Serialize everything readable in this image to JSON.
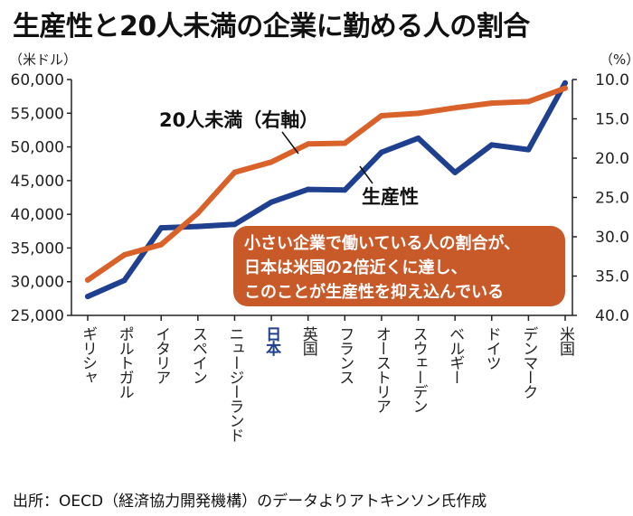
{
  "title": "生産性と20人未満の企業に勤める人の割合",
  "source": "出所：OECD（経済協力開発機構）のデータよりアトキンソン氏作成",
  "chart_data": {
    "type": "line",
    "categories": [
      "ギリシャ",
      "ポルトガル",
      "イタリア",
      "スペイン",
      "ニュージーランド",
      "日本",
      "英国",
      "フランス",
      "オーストリア",
      "スウェーデン",
      "ベルギー",
      "ドイツ",
      "デンマーク",
      "米国"
    ],
    "highlight_category": "日本",
    "left_axis": {
      "unit_label": "（米ドル）",
      "min": 25000,
      "max": 60000,
      "ticks": [
        25000,
        30000,
        35000,
        40000,
        45000,
        50000,
        55000,
        60000
      ],
      "tick_labels": [
        "25,000",
        "30,000",
        "35,000",
        "40,000",
        "45,000",
        "50,000",
        "55,000",
        "60,000"
      ]
    },
    "right_axis": {
      "unit_label": "（%）",
      "inverted": true,
      "min": 10.0,
      "max": 40.0,
      "ticks": [
        10.0,
        15.0,
        20.0,
        25.0,
        30.0,
        35.0,
        40.0
      ],
      "tick_labels": [
        "10.0",
        "15.0",
        "20.0",
        "25.0",
        "30.0",
        "35.0",
        "40.0"
      ]
    },
    "series": [
      {
        "name": "生産性",
        "axis": "left",
        "color": "#1f3f8f",
        "values": [
          27800,
          30200,
          38000,
          38200,
          38500,
          41800,
          43700,
          43600,
          49200,
          51300,
          46200,
          50300,
          49600,
          59500
        ]
      },
      {
        "name": "20人未満（右軸）",
        "axis": "right",
        "color": "#d9622b",
        "values": [
          35.5,
          32.3,
          31.0,
          27.0,
          21.8,
          20.5,
          18.2,
          18.1,
          14.6,
          14.3,
          13.6,
          13.0,
          12.8,
          11.1
        ]
      }
    ],
    "annotation": {
      "lines": [
        "小さい企業で働いている人の割合が、",
        "日本は米国の2倍近くに達し、",
        "このことが生産性を抑え込んでいる"
      ],
      "bg_color": "#c85a2a",
      "text_color": "#ffffff"
    }
  }
}
